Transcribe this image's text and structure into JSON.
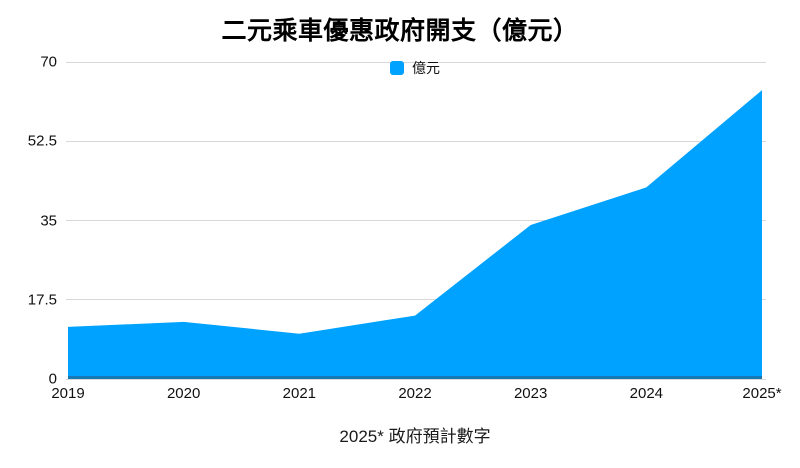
{
  "chart": {
    "title": "二元乘車優惠政府開支（億元）",
    "legend_label": "億元",
    "footnote": "2025* 政府預計數字"
  },
  "chart_data": {
    "type": "area",
    "title": "二元乘車優惠政府開支（億元）",
    "categories": [
      "2019",
      "2020",
      "2021",
      "2022",
      "2023",
      "2024",
      "2025*"
    ],
    "series": [
      {
        "name": "億元",
        "values": [
          11.5,
          12.6,
          10,
          14,
          34,
          42.3,
          63.8
        ]
      }
    ],
    "xlabel": "",
    "ylabel": "",
    "ylim": [
      0,
      70
    ],
    "yticks": [
      0,
      17.5,
      35,
      52.5,
      70
    ],
    "ytick_labels": [
      "0",
      "17.5",
      "35",
      "52.5",
      "70"
    ],
    "grid": true,
    "legend_position": "top-center",
    "footnote": "2025* 政府預計數字",
    "colors": {
      "area": "#00a2ff",
      "baseline": "#1878b4",
      "gridline": "#d8d8d8",
      "text": "#111111"
    }
  }
}
